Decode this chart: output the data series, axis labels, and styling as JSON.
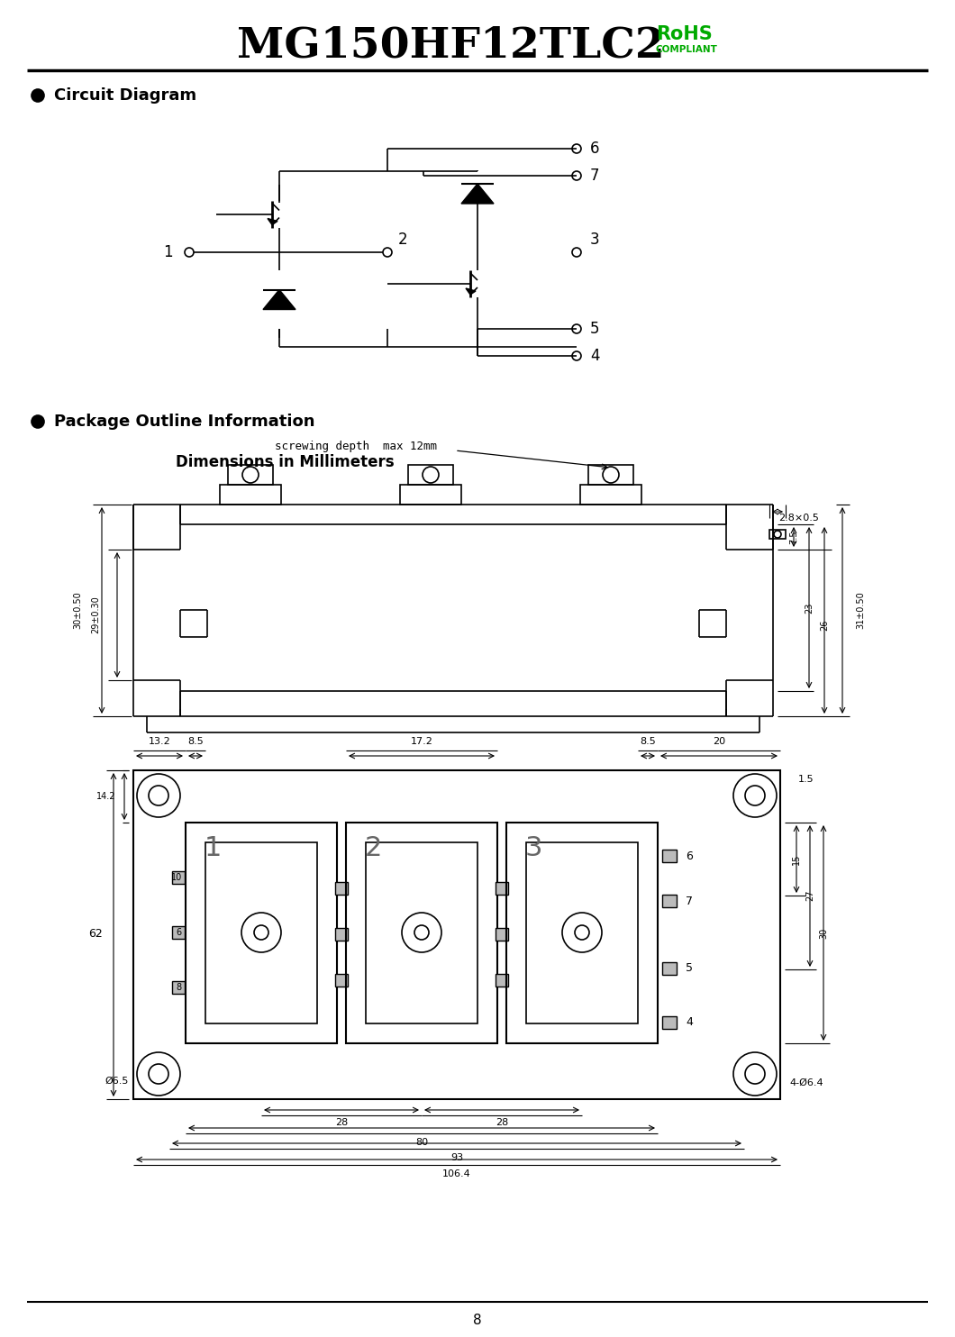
{
  "title_main": "MG150HF12TLC2",
  "title_rohs": "RoHS",
  "title_compliant": "COMPLIANT",
  "section1": "Circuit Diagram",
  "section2": "Package Outline Information",
  "dim_title": "Dimensions in Millimeters",
  "screw_label": "screwing depth  max 12mm",
  "dim_28x05": "2.8×0.5",
  "dim_30pm050": "30±0.50",
  "dim_29pm030": "29±0.30",
  "dim_75": "7.5",
  "dim_23": "23",
  "dim_26": "26",
  "dim_31pm050": "31±0.50",
  "dim_132": "13.2",
  "dim_85a": "8.5",
  "dim_172": "17.2",
  "dim_85b": "8.5",
  "dim_20": "20",
  "dim_15": "1.5",
  "dim_62": "62",
  "dim_142": "14.2",
  "dim_065": "Ø6.5",
  "dim_10": "10",
  "dim_6": "6",
  "dim_8": "8",
  "dim_6b": "6",
  "dim_7": "7",
  "dim_5": "5",
  "dim_4": "4",
  "dim_15b": "15",
  "dim_27": "27",
  "dim_30": "30",
  "dim_28a": "28",
  "dim_28b": "28",
  "dim_80": "80",
  "dim_93": "93",
  "dim_1064": "106.4",
  "dim_4x064": "4-Ø6.4",
  "page_number": "8",
  "bg_color": "#ffffff",
  "green_color": "#00aa00"
}
